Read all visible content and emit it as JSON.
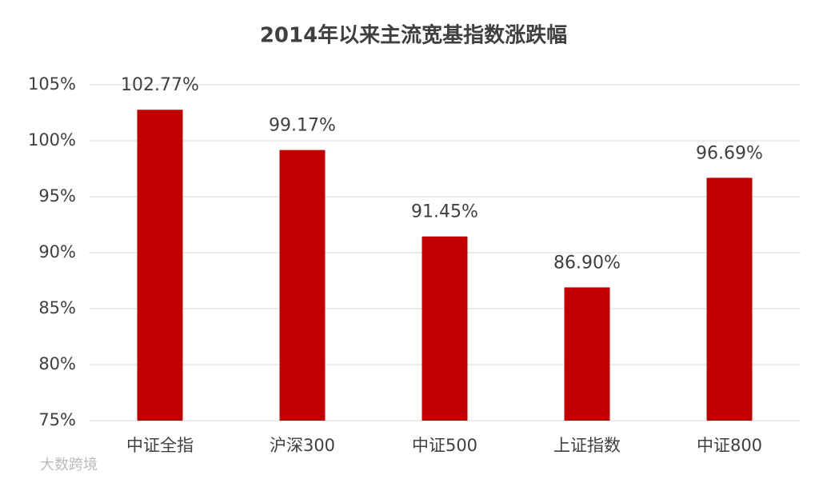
{
  "chart_data": {
    "type": "bar",
    "title": "2014年以来主流宽基指数涨跌幅",
    "categories": [
      "中证全指",
      "沪深300",
      "中证500",
      "上证指数",
      "中证800"
    ],
    "values": [
      102.77,
      99.17,
      91.45,
      86.9,
      96.69
    ],
    "value_labels": [
      "102.77%",
      "99.17%",
      "91.45%",
      "86.90%",
      "96.69%"
    ],
    "color": "#c00000",
    "ylim": [
      75,
      105
    ],
    "yticks": [
      {
        "value": 75,
        "label": "75%"
      },
      {
        "value": 80,
        "label": "80%"
      },
      {
        "value": 85,
        "label": "85%"
      },
      {
        "value": 90,
        "label": "90%"
      },
      {
        "value": 95,
        "label": "95%"
      },
      {
        "value": 100,
        "label": "100%"
      },
      {
        "value": 105,
        "label": "105%"
      }
    ],
    "grid": true,
    "watermark": "大数跨境"
  }
}
